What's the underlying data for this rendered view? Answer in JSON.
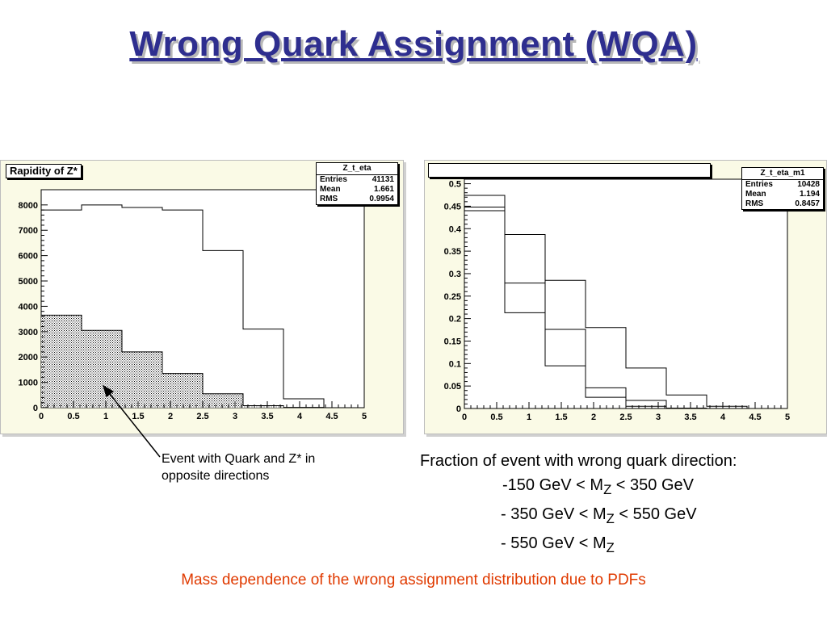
{
  "slide": {
    "title": "Wrong Quark Assignment (WQA)",
    "footer": "Mass dependence of the wrong assignment distribution due to PDFs",
    "colors": {
      "title": "#2e2e8f",
      "footer": "#e03a00",
      "frame": "#fafae6"
    }
  },
  "left_annotation": {
    "line1": "Event with Quark and Z* in",
    "line2": "opposite directions"
  },
  "right_annotation": {
    "heading": "Fraction of event with wrong quark direction:",
    "items": [
      {
        "pre": "-150 GeV < M",
        "sub": "Z",
        "post": " < 350 GeV"
      },
      {
        "pre": "- 350 GeV < M",
        "sub": "Z",
        "post": " < 550 GeV"
      },
      {
        "pre": "- 550 GeV < M",
        "sub": "Z",
        "post": ""
      }
    ]
  },
  "chart_data": [
    {
      "type": "histogram",
      "title": "Rapidity of Z*",
      "stats": {
        "name": "Z_t_eta",
        "entries": "41131",
        "mean": "1.661",
        "rms": "0.9954"
      },
      "stats_labels": {
        "entries": "Entries",
        "mean": "Mean",
        "rms": "RMS"
      },
      "xlim": [
        0,
        5
      ],
      "ylim": [
        0,
        8600
      ],
      "x_ticks": [
        0,
        0.5,
        1,
        1.5,
        2,
        2.5,
        3,
        3.5,
        4,
        4.5,
        5
      ],
      "y_ticks": [
        0,
        1000,
        2000,
        3000,
        4000,
        5000,
        6000,
        7000,
        8000
      ],
      "bin_edges": [
        0,
        0.625,
        1.25,
        1.875,
        2.5,
        3.125,
        3.75,
        4.375,
        5
      ],
      "series": [
        {
          "values": [
            7800,
            8000,
            7900,
            7800,
            6200,
            3100,
            350,
            0
          ],
          "fill": "none"
        },
        {
          "values": [
            3650,
            3050,
            2200,
            1350,
            550,
            80,
            10,
            0
          ],
          "fill": "dotted"
        }
      ]
    },
    {
      "type": "histogram",
      "title": "",
      "stats": {
        "name": "Z_t_eta_m1",
        "entries": "10428",
        "mean": "1.194",
        "rms": "0.8457"
      },
      "stats_labels": {
        "entries": "Entries",
        "mean": "Mean",
        "rms": "RMS"
      },
      "xlim": [
        0,
        5
      ],
      "ylim": [
        0,
        0.51
      ],
      "x_ticks": [
        0,
        0.5,
        1,
        1.5,
        2,
        2.5,
        3,
        3.5,
        4,
        4.5,
        5
      ],
      "y_ticks": [
        0,
        0.05,
        0.1,
        0.15,
        0.2,
        0.25,
        0.3,
        0.35,
        0.4,
        0.45,
        0.5
      ],
      "bin_edges": [
        0,
        0.625,
        1.25,
        1.875,
        2.5,
        3.125,
        3.75,
        4.375,
        5
      ],
      "series": [
        {
          "values": [
            0.474,
            0.213,
            0.095,
            0.025,
            0.005,
            0.0,
            0.0,
            0.0
          ],
          "fill": "none"
        },
        {
          "values": [
            0.448,
            0.387,
            0.176,
            0.046,
            0.018,
            0.001,
            0.0,
            0.0
          ],
          "fill": "none"
        },
        {
          "values": [
            0.44,
            0.279,
            0.285,
            0.18,
            0.09,
            0.03,
            0.005,
            0.0
          ],
          "fill": "none"
        }
      ]
    }
  ]
}
